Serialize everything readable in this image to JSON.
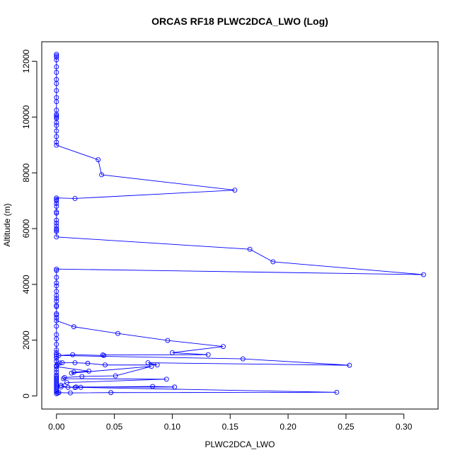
{
  "chart_data": {
    "type": "line",
    "title": "ORCAS RF18 PLWC2DCA_LWO (Log)",
    "xlabel": "PLWC2DCA_LWO",
    "ylabel": "Altitude (m)",
    "xlim": [
      -0.0127,
      0.3295
    ],
    "ylim": [
      -470,
      12700
    ],
    "x_ticks": [
      0.0,
      0.05,
      0.1,
      0.15,
      0.2,
      0.25,
      0.3
    ],
    "x_tick_labels": [
      "0.00",
      "0.05",
      "0.10",
      "0.15",
      "0.20",
      "0.25",
      "0.30"
    ],
    "y_ticks": [
      0,
      2000,
      4000,
      6000,
      8000,
      10000,
      12000
    ],
    "y_tick_labels": [
      "0",
      "2000",
      "4000",
      "6000",
      "8000",
      "10000",
      "12000"
    ],
    "grid": false,
    "series_color": "#0000ff",
    "series": [
      {
        "marker": "open-circle",
        "points": [
          [
            0,
            12250
          ],
          [
            0,
            12200
          ],
          [
            0,
            12150
          ],
          [
            0,
            12050
          ],
          [
            0,
            11800
          ],
          [
            0,
            11600
          ],
          [
            0,
            11350
          ],
          [
            0,
            11200
          ],
          [
            0,
            10950
          ],
          [
            0,
            10700
          ],
          [
            0,
            10550
          ],
          [
            0,
            10250
          ],
          [
            0,
            10100
          ],
          [
            0,
            10050
          ],
          [
            0,
            10000
          ],
          [
            0,
            9950
          ],
          [
            0,
            9800
          ],
          [
            0,
            9700
          ],
          [
            0,
            9500
          ],
          [
            0,
            9300
          ],
          [
            0,
            9100
          ],
          [
            0,
            8990
          ],
          [
            0.036,
            8470
          ],
          [
            0.039,
            7930
          ],
          [
            0.154,
            7380
          ],
          [
            0.016,
            7080
          ],
          [
            0,
            7100
          ],
          [
            0,
            7050
          ],
          [
            0,
            7000
          ],
          [
            0,
            6900
          ],
          [
            0,
            6800
          ],
          [
            0,
            6600
          ],
          [
            0,
            6550
          ],
          [
            0,
            6300
          ],
          [
            0,
            6200
          ],
          [
            0,
            6100
          ],
          [
            0,
            6000
          ],
          [
            0,
            5950
          ],
          [
            0,
            5900
          ],
          [
            0,
            5700
          ],
          [
            0.167,
            5260
          ],
          [
            0.187,
            4810
          ],
          [
            0.317,
            4350
          ],
          [
            0,
            4550
          ],
          [
            0,
            4500
          ],
          [
            0,
            4250
          ],
          [
            0,
            4050
          ],
          [
            0,
            3950
          ],
          [
            0,
            3750
          ],
          [
            0,
            3600
          ],
          [
            0,
            3500
          ],
          [
            0,
            3400
          ],
          [
            0,
            3250
          ],
          [
            0,
            3200
          ],
          [
            0,
            2950
          ],
          [
            0,
            2900
          ],
          [
            0,
            2700
          ],
          [
            0.015,
            2480
          ],
          [
            0.053,
            2240
          ],
          [
            0.096,
            1990
          ],
          [
            0.144,
            1770
          ],
          [
            0.1,
            1550
          ],
          [
            0.131,
            1480
          ],
          [
            0.04,
            1470
          ],
          [
            0.041,
            1450
          ],
          [
            0.014,
            1480
          ],
          [
            0.002,
            1450
          ],
          [
            0.161,
            1330
          ],
          [
            0.253,
            1100
          ],
          [
            0.079,
            1190
          ],
          [
            0.087,
            1110
          ],
          [
            0.042,
            1110
          ],
          [
            0.027,
            1170
          ],
          [
            0.016,
            1190
          ],
          [
            0.005,
            1190
          ],
          [
            0.003,
            1180
          ],
          [
            0.001,
            1150
          ],
          [
            0,
            1100
          ],
          [
            0,
            1050
          ],
          [
            0.028,
            890
          ],
          [
            0.015,
            850
          ],
          [
            0.013,
            820
          ],
          [
            0.082,
            1060
          ],
          [
            0.051,
            720
          ],
          [
            0.022,
            700
          ],
          [
            0.007,
            660
          ],
          [
            0.006,
            620
          ],
          [
            0.095,
            600
          ],
          [
            0.009,
            480
          ],
          [
            0.004,
            380
          ],
          [
            0.01,
            310
          ],
          [
            0.083,
            340
          ],
          [
            0.102,
            320
          ],
          [
            0.017,
            320
          ],
          [
            0.016,
            300
          ],
          [
            0.021,
            310
          ],
          [
            0.004,
            320
          ],
          [
            0.242,
            130
          ],
          [
            0.047,
            120
          ],
          [
            0.012,
            110
          ],
          [
            0.002,
            120
          ],
          [
            0.001,
            100
          ],
          [
            0,
            80
          ],
          [
            0,
            150
          ],
          [
            0,
            200
          ],
          [
            0,
            250
          ],
          [
            0,
            300
          ],
          [
            0,
            350
          ],
          [
            0,
            400
          ],
          [
            0,
            450
          ],
          [
            0,
            500
          ],
          [
            0,
            550
          ],
          [
            0,
            600
          ],
          [
            0,
            650
          ],
          [
            0,
            700
          ],
          [
            0,
            750
          ],
          [
            0,
            850
          ],
          [
            0,
            950
          ],
          [
            0,
            1050
          ],
          [
            0,
            1250
          ],
          [
            0,
            1350
          ],
          [
            0,
            1420
          ],
          [
            0,
            1480
          ],
          [
            0,
            1550
          ],
          [
            0,
            1650
          ],
          [
            0,
            1850
          ],
          [
            0,
            2050
          ],
          [
            0,
            2200
          ],
          [
            0,
            2500
          ],
          [
            0,
            2800
          ]
        ]
      }
    ]
  }
}
